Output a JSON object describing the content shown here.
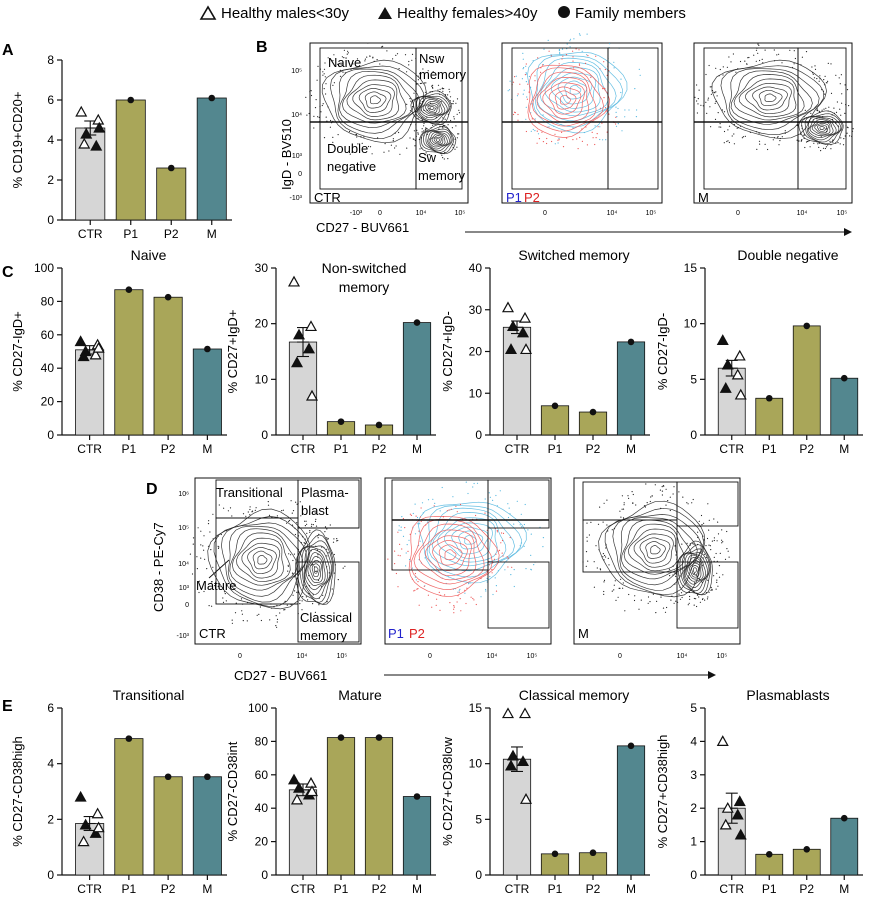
{
  "legend": {
    "items": [
      {
        "marker": "open-triangle",
        "label": "Healthy males<30y"
      },
      {
        "marker": "filled-triangle",
        "label": "Healthy females>40y"
      },
      {
        "marker": "filled-circle",
        "label": "Family members"
      }
    ]
  },
  "colors": {
    "CTR": "#d6d6d6",
    "P1": "#a9a659",
    "P2": "#a9a659",
    "M": "#53878f",
    "P1_text": "#2222cc",
    "P2_text": "#dd2222",
    "contour_black": "#222222",
    "contour_blue": "#55b8e0",
    "contour_red": "#ee5555"
  },
  "panel_letters": [
    "A",
    "B",
    "C",
    "D",
    "E"
  ],
  "flow_b": {
    "x_label": "CD27 - BUV661",
    "y_label": "IgD - BV510",
    "x_ticks": [
      "-10³",
      "0",
      "10⁴",
      "10⁵"
    ],
    "y_ticks": [
      "10⁵",
      "10⁴",
      "10³",
      "0",
      "-10³"
    ],
    "gate_labels": [
      "Naive",
      "Nsw memory",
      "Double negative",
      "Sw memory"
    ],
    "plot_labels": [
      "CTR",
      "P1",
      "P2",
      "M"
    ]
  },
  "flow_d": {
    "x_label": "CD27 - BUV661",
    "y_label": "CD38 - PE-Cy7",
    "x_ticks": [
      "0",
      "10⁴",
      "10⁵"
    ],
    "y_ticks": [
      "10⁶",
      "10⁵",
      "10⁴",
      "10³",
      "0",
      "-10³"
    ],
    "gate_labels": [
      "Transitional",
      "Plasma-blast",
      "Mature",
      "Classical memory"
    ],
    "plot_labels": [
      "CTR",
      "P1",
      "P2",
      "M"
    ]
  },
  "chart_data": [
    {
      "id": "A",
      "type": "bar",
      "title": "",
      "xlabel": "",
      "ylabel": "% CD19+CD20+",
      "categories": [
        "CTR",
        "P1",
        "P2",
        "M"
      ],
      "values": [
        4.6,
        6.0,
        2.6,
        6.1
      ],
      "error": 0.35,
      "ylim": [
        0,
        8
      ],
      "yticks": [
        0,
        2,
        4,
        6,
        8
      ],
      "ctr_points": [
        {
          "y": 5.4,
          "m": "open"
        },
        {
          "y": 5.0,
          "m": "open"
        },
        {
          "y": 4.3,
          "m": "filled"
        },
        {
          "y": 3.7,
          "m": "filled"
        },
        {
          "y": 3.8,
          "m": "open"
        },
        {
          "y": 4.6,
          "m": "filled"
        }
      ]
    },
    {
      "id": "C1",
      "type": "bar",
      "title": "Naive",
      "xlabel": "",
      "ylabel": "% CD27-IgD+",
      "categories": [
        "CTR",
        "P1",
        "P2",
        "M"
      ],
      "values": [
        51,
        87,
        82.5,
        51.5
      ],
      "error": 2.5,
      "ylim": [
        0,
        100
      ],
      "yticks": [
        0,
        20,
        40,
        60,
        80,
        100
      ],
      "ctr_points": [
        {
          "y": 56,
          "m": "filled"
        },
        {
          "y": 54,
          "m": "open"
        },
        {
          "y": 50,
          "m": "filled"
        },
        {
          "y": 48,
          "m": "open"
        },
        {
          "y": 47,
          "m": "filled"
        },
        {
          "y": 52,
          "m": "open"
        }
      ]
    },
    {
      "id": "C2",
      "type": "bar",
      "title": "Non-switched memory",
      "xlabel": "",
      "ylabel": "% CD27+IgD+",
      "categories": [
        "CTR",
        "P1",
        "P2",
        "M"
      ],
      "values": [
        16.7,
        2.4,
        1.8,
        20.2
      ],
      "error": 2.6,
      "ylim": [
        0,
        30
      ],
      "yticks": [
        0,
        10,
        20,
        30
      ],
      "ctr_points": [
        {
          "y": 27.5,
          "m": "open"
        },
        {
          "y": 19.5,
          "m": "open"
        },
        {
          "y": 18.0,
          "m": "filled"
        },
        {
          "y": 15.5,
          "m": "filled"
        },
        {
          "y": 13.0,
          "m": "filled"
        },
        {
          "y": 7.0,
          "m": "open"
        }
      ]
    },
    {
      "id": "C3",
      "type": "bar",
      "title": "Switched memory",
      "xlabel": "",
      "ylabel": "% CD27+IgD-",
      "categories": [
        "CTR",
        "P1",
        "P2",
        "M"
      ],
      "values": [
        25.8,
        7.0,
        5.5,
        22.3
      ],
      "error": 1.5,
      "ylim": [
        0,
        40
      ],
      "yticks": [
        0,
        10,
        20,
        30,
        40
      ],
      "ctr_points": [
        {
          "y": 30.5,
          "m": "open"
        },
        {
          "y": 28.0,
          "m": "open"
        },
        {
          "y": 26.0,
          "m": "filled"
        },
        {
          "y": 24.5,
          "m": "filled"
        },
        {
          "y": 20.5,
          "m": "filled"
        },
        {
          "y": 20.5,
          "m": "open"
        }
      ]
    },
    {
      "id": "C4",
      "type": "bar",
      "title": "Double negative",
      "xlabel": "",
      "ylabel": "% CD27-IgD-",
      "categories": [
        "CTR",
        "P1",
        "P2",
        "M"
      ],
      "values": [
        6.0,
        3.3,
        9.8,
        5.1
      ],
      "error": 0.7,
      "ylim": [
        0,
        15
      ],
      "yticks": [
        0,
        5,
        10,
        15
      ],
      "ctr_points": [
        {
          "y": 8.5,
          "m": "filled"
        },
        {
          "y": 7.1,
          "m": "open"
        },
        {
          "y": 6.3,
          "m": "filled"
        },
        {
          "y": 5.4,
          "m": "open"
        },
        {
          "y": 4.2,
          "m": "filled"
        },
        {
          "y": 3.6,
          "m": "open"
        }
      ]
    },
    {
      "id": "E1",
      "type": "bar",
      "title": "Transitional",
      "xlabel": "",
      "ylabel": "% CD27-CD38high",
      "categories": [
        "CTR",
        "P1",
        "P2",
        "M"
      ],
      "values": [
        1.85,
        4.9,
        3.53,
        3.53
      ],
      "error": 0.25,
      "ylim": [
        0,
        6
      ],
      "yticks": [
        0,
        2,
        4,
        6
      ],
      "ctr_points": [
        {
          "y": 2.8,
          "m": "filled"
        },
        {
          "y": 2.2,
          "m": "open"
        },
        {
          "y": 1.8,
          "m": "filled"
        },
        {
          "y": 1.5,
          "m": "filled"
        },
        {
          "y": 1.2,
          "m": "open"
        },
        {
          "y": 1.7,
          "m": "open"
        }
      ]
    },
    {
      "id": "E2",
      "type": "bar",
      "title": "Mature",
      "xlabel": "",
      "ylabel": "% CD27-CD38int",
      "categories": [
        "CTR",
        "P1",
        "P2",
        "M"
      ],
      "values": [
        51,
        82.3,
        82.3,
        47
      ],
      "error": 3.5,
      "ylim": [
        0,
        100
      ],
      "yticks": [
        0,
        20,
        40,
        60,
        80,
        100
      ],
      "ctr_points": [
        {
          "y": 57,
          "m": "filled"
        },
        {
          "y": 55,
          "m": "open"
        },
        {
          "y": 52,
          "m": "filled"
        },
        {
          "y": 48,
          "m": "filled"
        },
        {
          "y": 45,
          "m": "open"
        },
        {
          "y": 50,
          "m": "open"
        }
      ]
    },
    {
      "id": "E3",
      "type": "bar",
      "title": "Classical memory",
      "xlabel": "",
      "ylabel": "% CD27+CD38low",
      "categories": [
        "CTR",
        "P1",
        "P2",
        "M"
      ],
      "values": [
        10.4,
        1.9,
        2.0,
        11.6
      ],
      "error": 1.1,
      "ylim": [
        0,
        15
      ],
      "yticks": [
        0,
        5,
        10,
        15
      ],
      "ctr_points": [
        {
          "y": 14.5,
          "m": "open"
        },
        {
          "y": 14.5,
          "m": "open"
        },
        {
          "y": 10.7,
          "m": "filled"
        },
        {
          "y": 10.2,
          "m": "filled"
        },
        {
          "y": 9.8,
          "m": "filled"
        },
        {
          "y": 6.8,
          "m": "open"
        }
      ]
    },
    {
      "id": "E4",
      "type": "bar",
      "title": "Plasmablasts",
      "xlabel": "",
      "ylabel": "% CD27+CD38high",
      "categories": [
        "CTR",
        "P1",
        "P2",
        "M"
      ],
      "values": [
        2.0,
        0.62,
        0.77,
        1.7
      ],
      "error": 0.45,
      "ylim": [
        0,
        5
      ],
      "yticks": [
        0,
        1,
        2,
        3,
        4,
        5
      ],
      "ctr_points": [
        {
          "y": 4.0,
          "m": "open"
        },
        {
          "y": 2.2,
          "m": "filled"
        },
        {
          "y": 2.0,
          "m": "open"
        },
        {
          "y": 1.8,
          "m": "filled"
        },
        {
          "y": 1.5,
          "m": "open"
        },
        {
          "y": 1.2,
          "m": "filled"
        }
      ]
    }
  ]
}
